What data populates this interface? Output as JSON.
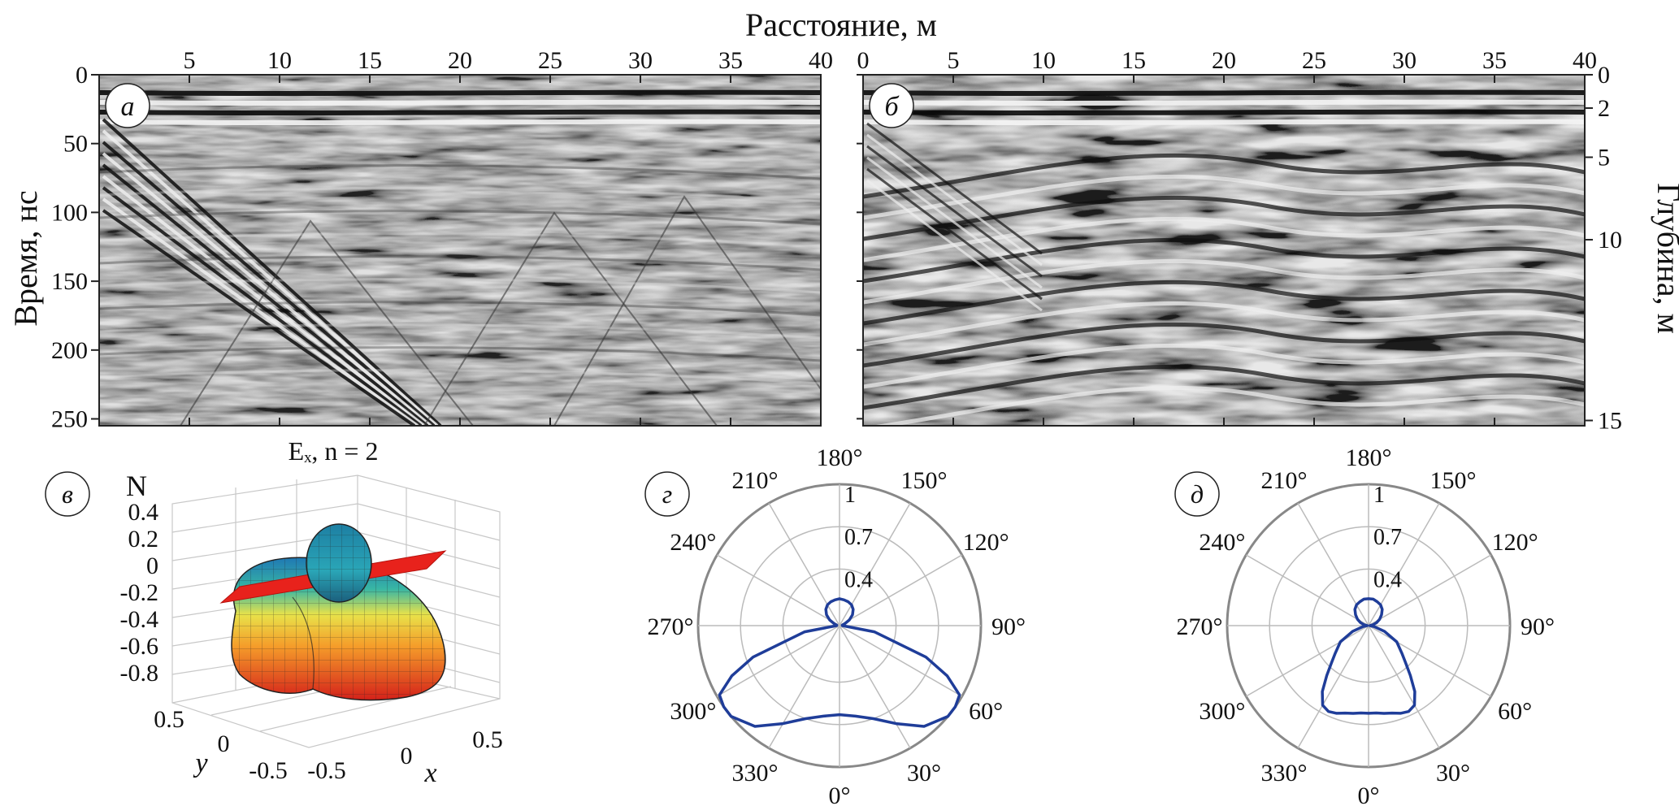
{
  "chart_data": [
    {
      "type": "heatmap",
      "panel_label": "а",
      "title": "Расстояние, м",
      "xlabel": "Расстояние, м",
      "ylabel": "Время, нс",
      "xlim": [
        0,
        40
      ],
      "ylim": [
        0,
        255
      ],
      "x_ticks": [
        "5",
        "10",
        "15",
        "20",
        "25",
        "30",
        "35",
        "40"
      ],
      "y_ticks": [
        "0",
        "50",
        "100",
        "150",
        "200",
        "250"
      ],
      "grid": false
    },
    {
      "type": "heatmap",
      "panel_label": "б",
      "xlabel": "Расстояние, м",
      "ylabel": "Глубина, м",
      "xlim": [
        0,
        40
      ],
      "x_ticks": [
        "0",
        "5",
        "10",
        "15",
        "20",
        "25",
        "30",
        "35",
        "40"
      ],
      "y_ticks": [
        "0",
        "2",
        "5",
        "10",
        "15"
      ],
      "grid": false
    },
    {
      "type": "surface3d",
      "panel_label": "в",
      "title": "Eₓ, n = 2",
      "zlabel": "N",
      "xlabel": "x",
      "ylabel": "y",
      "z_ticks": [
        "0.4",
        "0.2",
        "0",
        "-0.2",
        "-0.4",
        "-0.6",
        "-0.8"
      ],
      "x_ticks": [
        "-0.5",
        "0",
        "0.5"
      ],
      "y_ticks": [
        "0.5",
        "0",
        "-0.5"
      ],
      "grid": true
    },
    {
      "type": "polar",
      "panel_label": "г",
      "angle_labels": [
        "180°",
        "150°",
        "120°",
        "90°",
        "60°",
        "30°",
        "0°",
        "330°",
        "300°",
        "270°",
        "240°",
        "210°"
      ],
      "r_labels": [
        "1",
        "0.7",
        "0.4"
      ],
      "rlim": [
        0,
        1
      ],
      "line_color": "#1f3d99",
      "series": [
        {
          "angles": [
            0,
            10,
            20,
            30,
            40,
            50,
            55,
            60,
            65,
            70,
            80,
            90,
            100,
            110,
            120,
            130,
            140,
            150,
            160,
            170,
            180,
            190,
            200,
            210,
            220,
            230,
            240,
            250,
            260,
            270,
            280,
            290,
            295,
            300,
            305,
            310,
            320,
            330,
            340,
            350,
            360
          ],
          "r": [
            0.63,
            0.65,
            0.7,
            0.8,
            0.93,
            1.0,
            1.0,
            0.98,
            0.84,
            0.65,
            0.25,
            0.02,
            0.02,
            0.04,
            0.08,
            0.12,
            0.15,
            0.17,
            0.18,
            0.185,
            0.19,
            0.185,
            0.18,
            0.17,
            0.15,
            0.12,
            0.08,
            0.04,
            0.02,
            0.02,
            0.25,
            0.65,
            0.84,
            0.98,
            1.0,
            1.0,
            0.93,
            0.8,
            0.7,
            0.65,
            0.63
          ]
        }
      ]
    },
    {
      "type": "polar",
      "panel_label": "д",
      "angle_labels": [
        "180°",
        "150°",
        "120°",
        "90°",
        "60°",
        "30°",
        "0°",
        "330°",
        "300°",
        "270°",
        "240°",
        "210°"
      ],
      "r_labels": [
        "1",
        "0.7",
        "0.4"
      ],
      "rlim": [
        0,
        1
      ],
      "line_color": "#1f3d99",
      "series": [
        {
          "angles": [
            0,
            5,
            10,
            15,
            20,
            25,
            30,
            35,
            40,
            45,
            50,
            60,
            70,
            80,
            90,
            100,
            110,
            120,
            130,
            140,
            150,
            160,
            170,
            180,
            190,
            200,
            210,
            220,
            230,
            240,
            250,
            260,
            270,
            280,
            290,
            300,
            310,
            315,
            320,
            325,
            330,
            335,
            340,
            345,
            350,
            355,
            360
          ],
          "r": [
            0.62,
            0.62,
            0.63,
            0.64,
            0.66,
            0.67,
            0.65,
            0.57,
            0.46,
            0.37,
            0.31,
            0.23,
            0.12,
            0.04,
            0.01,
            0.03,
            0.06,
            0.09,
            0.12,
            0.15,
            0.17,
            0.18,
            0.19,
            0.19,
            0.19,
            0.18,
            0.17,
            0.15,
            0.12,
            0.09,
            0.06,
            0.03,
            0.01,
            0.04,
            0.12,
            0.23,
            0.31,
            0.37,
            0.46,
            0.57,
            0.65,
            0.67,
            0.66,
            0.64,
            0.63,
            0.62,
            0.62
          ]
        }
      ]
    }
  ]
}
